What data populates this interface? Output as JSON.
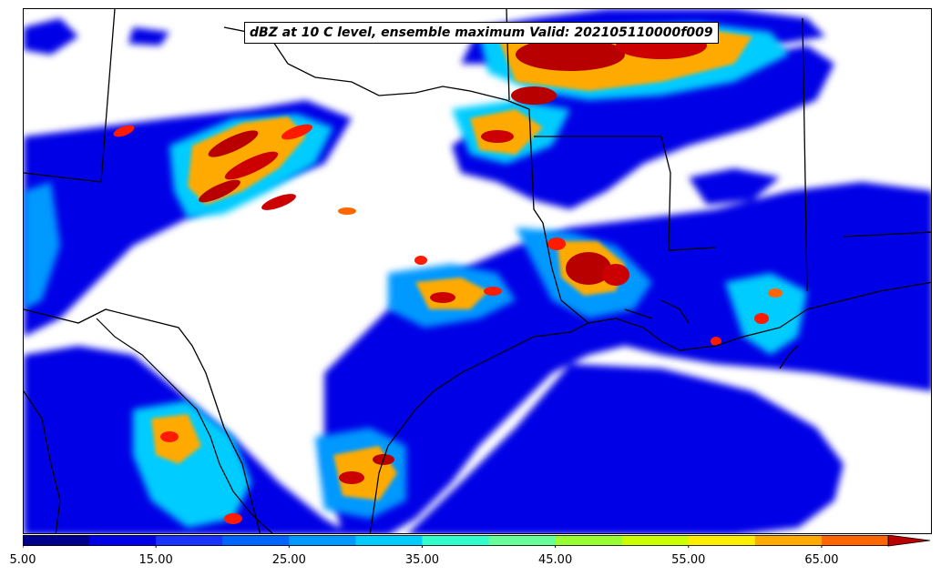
{
  "title": "dBZ at 10 C level, ensemble maximum Valid: 202105110000f009",
  "colorbar": {
    "levels": [
      5,
      10,
      15,
      20,
      25,
      30,
      35,
      40,
      45,
      50,
      55,
      60,
      65,
      70
    ],
    "colors": [
      "#00008c",
      "#0000e6",
      "#1a33ff",
      "#0066ff",
      "#0099ff",
      "#00ccff",
      "#33ffcc",
      "#66ff99",
      "#99ff33",
      "#ccff00",
      "#ffee00",
      "#ffaa00",
      "#ff6600",
      "#ff1a00",
      "#b80000"
    ],
    "extend": "max",
    "tick_values": [
      5,
      15,
      25,
      35,
      45,
      55,
      65
    ],
    "tick_labels": [
      "5.00",
      "15.00",
      "25.00",
      "35.00",
      "45.00",
      "55.00",
      "65.00"
    ]
  }
}
